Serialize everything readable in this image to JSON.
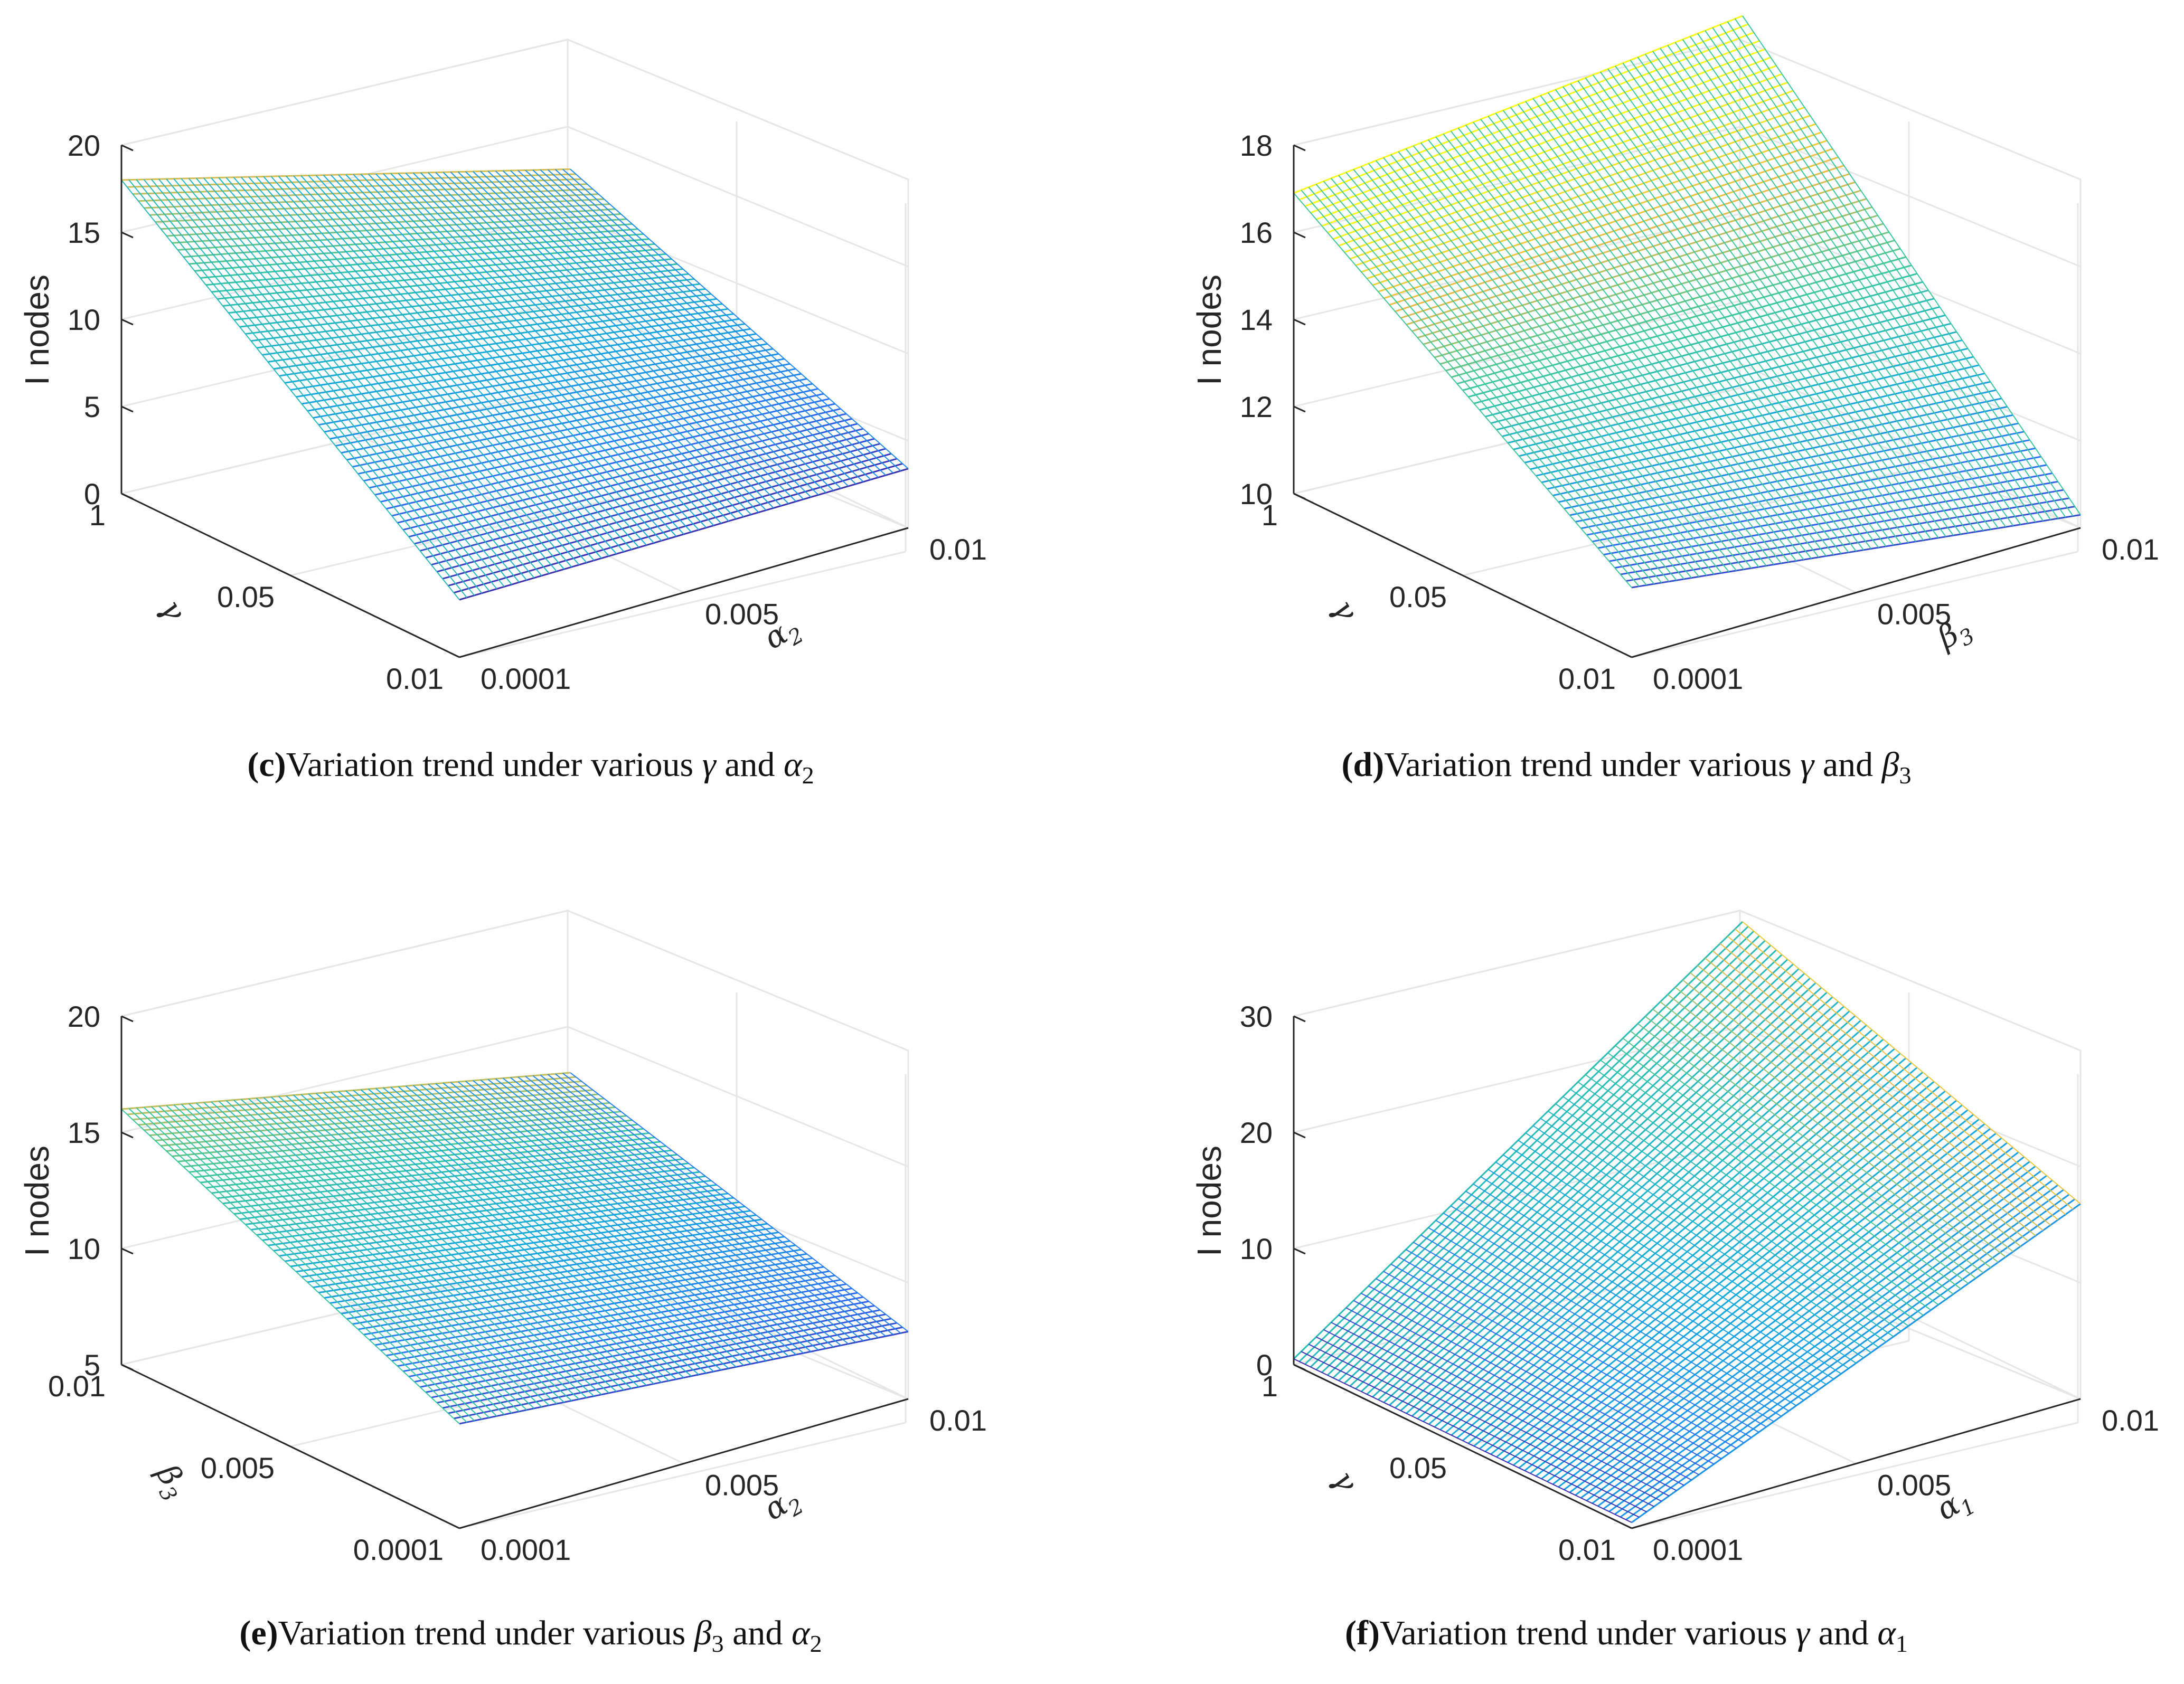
{
  "chart_data": [
    {
      "type": "surface",
      "panel": "c",
      "caption": {
        "prefix": "(",
        "letter": "c",
        "suffix": ")",
        "text": "Variation trend under various ",
        "sym1": "γ",
        "sub1": "",
        "join": " and ",
        "sym2": "α",
        "sub2": "2"
      },
      "zlabel": "I nodes",
      "zticks": [
        "0",
        "5",
        "10",
        "15",
        "20"
      ],
      "zlim": [
        0,
        20
      ],
      "y_axis": {
        "symbol": "γ",
        "sub": "",
        "ticks": [
          "1",
          "0.05",
          "0.01"
        ]
      },
      "x_axis": {
        "symbol": "α",
        "sub": "2",
        "ticks": [
          "0.0001",
          "0.005",
          "0.01"
        ]
      },
      "corners": {
        "front": 3.3,
        "right": 3.4,
        "back": 11.2,
        "left": 18.0
      },
      "colormap_range": [
        3,
        18
      ]
    },
    {
      "type": "surface",
      "panel": "d",
      "caption": {
        "prefix": "(",
        "letter": "d",
        "suffix": ")",
        "text": "Variation trend under various ",
        "sym1": "γ",
        "sub1": "",
        "join": " and ",
        "sym2": "β",
        "sub2": "3"
      },
      "zlabel": "I nodes",
      "zticks": [
        "10",
        "12",
        "14",
        "16",
        "18"
      ],
      "zlim": [
        10,
        18
      ],
      "y_axis": {
        "symbol": "γ",
        "sub": "",
        "ticks": [
          "1",
          "0.05",
          "0.01"
        ]
      },
      "x_axis": {
        "symbol": "β",
        "sub": "3",
        "ticks": [
          "0.0001",
          "0.005",
          "0.01"
        ]
      },
      "corners": {
        "front": 11.6,
        "right": 10.3,
        "back": 18.0,
        "left": 16.9
      },
      "colormap_range": [
        10.3,
        16.8
      ]
    },
    {
      "type": "surface",
      "panel": "e",
      "caption": {
        "prefix": "(",
        "letter": "e",
        "suffix": ")",
        "text": "Variation trend under various ",
        "sym1": "β",
        "sub1": "3",
        "join": " and ",
        "sym2": "α",
        "sub2": "2"
      },
      "zlabel": "I nodes",
      "zticks": [
        "5",
        "10",
        "15",
        "20"
      ],
      "zlim": [
        5,
        20
      ],
      "y_axis": {
        "symbol": "β",
        "sub": "3",
        "ticks": [
          "0.01",
          "0.005",
          "0.0001"
        ]
      },
      "x_axis": {
        "symbol": "α",
        "sub": "2",
        "ticks": [
          "0.0001",
          "0.005",
          "0.01"
        ]
      },
      "corners": {
        "front": 9.5,
        "right": 7.9,
        "back": 12.0,
        "left": 16.0
      },
      "colormap_range": [
        8,
        16
      ]
    },
    {
      "type": "surface",
      "panel": "f",
      "caption": {
        "prefix": "(",
        "letter": "f",
        "suffix": ")",
        "text": "Variation trend under various ",
        "sym1": "γ",
        "sub1": "",
        "join": " and ",
        "sym2": "α",
        "sub2": "1"
      },
      "zlabel": "I nodes",
      "zticks": [
        "0",
        "10",
        "20",
        "30"
      ],
      "zlim": [
        0,
        30
      ],
      "y_axis": {
        "symbol": "γ",
        "sub": "",
        "ticks": [
          "1",
          "0.05",
          "0.01"
        ]
      },
      "x_axis": {
        "symbol": "α",
        "sub": "1",
        "ticks": [
          "0.0001",
          "0.005",
          "0.01"
        ]
      },
      "corners": {
        "front": 0.5,
        "right": 16.8,
        "back": 27.0,
        "left": 0.5
      },
      "colormap_range": [
        0,
        26
      ]
    }
  ]
}
